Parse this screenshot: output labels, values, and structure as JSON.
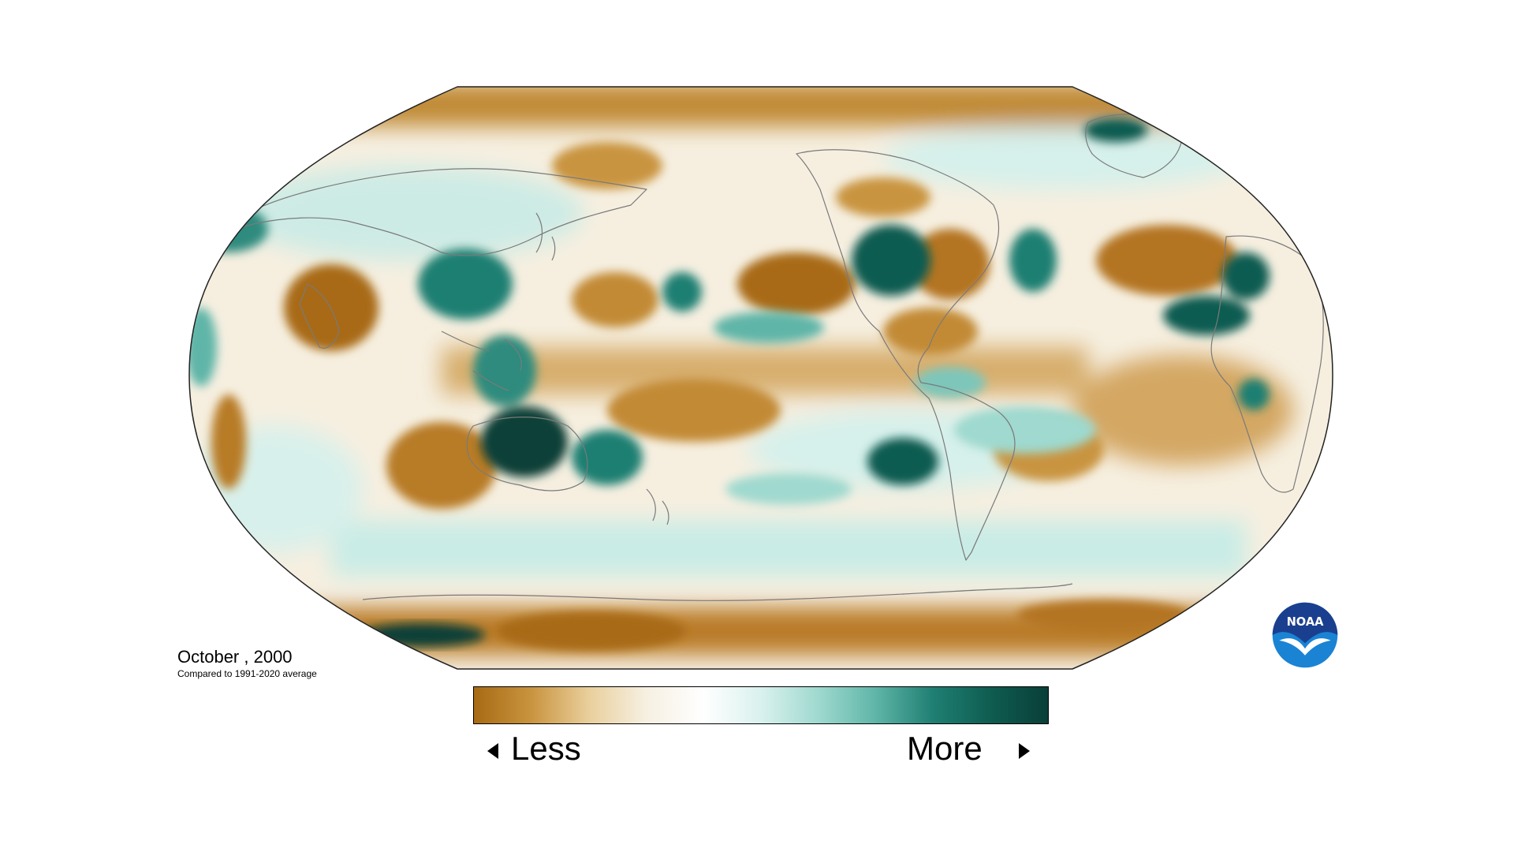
{
  "map": {
    "title": "October , 2000",
    "subtitle": "Compared to 1991-2020 average"
  },
  "legend": {
    "less_label": "Less",
    "more_label": "More",
    "colors": [
      "#a86a14",
      "#c9943f",
      "#e9cf9c",
      "#f6f0e2",
      "#ffffff",
      "#d9f1ee",
      "#9fd9cf",
      "#5fb5a8",
      "#1f7f72",
      "#0f5c51",
      "#093f38"
    ]
  },
  "logo": {
    "text": "NOAA",
    "colors": {
      "dark_blue": "#1b3f8f",
      "light_blue": "#1a83d4",
      "white": "#ffffff"
    }
  },
  "palette": {
    "dry_strong": "#a86a14",
    "dry_mid": "#c9943f",
    "dry_light": "#e9cf9c",
    "neutral": "#f7f3ea",
    "wet_light": "#bfe6df",
    "wet_mid": "#5fb5a8",
    "wet_strong": "#0f5c51",
    "coast": "#7a7a7a"
  }
}
